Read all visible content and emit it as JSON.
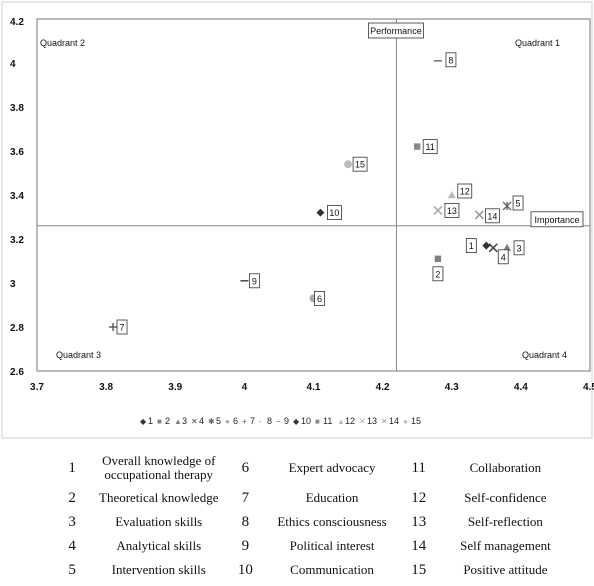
{
  "chart_data": {
    "type": "scatter",
    "xlim": [
      3.7,
      4.5
    ],
    "ylim": [
      2.6,
      4.2
    ],
    "x_ticks": [
      "3.7",
      "3.8",
      "3.9",
      "4",
      "4.1",
      "4.2",
      "4.3",
      "4.4",
      "4.5"
    ],
    "y_ticks": [
      "2.6",
      "2.8",
      "3",
      "3.2",
      "3.4",
      "3.6",
      "3.8",
      "4",
      "4.2"
    ],
    "x_divider": 4.22,
    "y_divider": 3.26,
    "axis_callouts": {
      "y_axis": "Performance",
      "x_axis": "Importance"
    },
    "quadrants": [
      "Quadrant 1",
      "Quadrant 2",
      "Quadrant 3",
      "Quadrant 4"
    ],
    "grid": false,
    "legend_position": "bottom",
    "series": [
      {
        "name": "1",
        "x": 4.35,
        "y": 3.17,
        "marker": "diamond",
        "color": "#333333"
      },
      {
        "name": "2",
        "x": 4.28,
        "y": 3.11,
        "marker": "square",
        "color": "#7f7f7f"
      },
      {
        "name": "3",
        "x": 4.38,
        "y": 3.16,
        "marker": "triangle",
        "color": "#7f7f7f"
      },
      {
        "name": "4",
        "x": 4.36,
        "y": 3.16,
        "marker": "x",
        "color": "#444444"
      },
      {
        "name": "5",
        "x": 4.38,
        "y": 3.35,
        "marker": "star",
        "color": "#666666"
      },
      {
        "name": "6",
        "x": 4.1,
        "y": 2.93,
        "marker": "circle",
        "color": "#aaaaaa"
      },
      {
        "name": "7",
        "x": 3.81,
        "y": 2.8,
        "marker": "plus",
        "color": "#555555"
      },
      {
        "name": "8",
        "x": 4.28,
        "y": 4.01,
        "marker": "dash",
        "color": "#777777"
      },
      {
        "name": "9",
        "x": 4.0,
        "y": 3.01,
        "marker": "dash",
        "color": "#555555"
      },
      {
        "name": "10",
        "x": 4.11,
        "y": 3.32,
        "marker": "diamond",
        "color": "#333333"
      },
      {
        "name": "11",
        "x": 4.25,
        "y": 3.62,
        "marker": "square",
        "color": "#888888"
      },
      {
        "name": "12",
        "x": 4.3,
        "y": 3.4,
        "marker": "triangle",
        "color": "#bbbbbb"
      },
      {
        "name": "13",
        "x": 4.28,
        "y": 3.33,
        "marker": "x",
        "color": "#aaaaaa"
      },
      {
        "name": "14",
        "x": 4.34,
        "y": 3.31,
        "marker": "x",
        "color": "#999999"
      },
      {
        "name": "15",
        "x": 4.15,
        "y": 3.54,
        "marker": "circle",
        "color": "#bbbbbb"
      }
    ],
    "legend": [
      {
        "symbol": "◆",
        "label": "1"
      },
      {
        "symbol": "■",
        "label": "2"
      },
      {
        "symbol": "▲",
        "label": "3"
      },
      {
        "symbol": "✕",
        "label": "4"
      },
      {
        "symbol": "✱",
        "label": "5"
      },
      {
        "symbol": "●",
        "label": "6"
      },
      {
        "symbol": "+",
        "label": "7"
      },
      {
        "symbol": "-",
        "label": "8"
      },
      {
        "symbol": "−",
        "label": "9"
      },
      {
        "symbol": "◆",
        "label": "10"
      },
      {
        "symbol": "■",
        "label": "11"
      },
      {
        "symbol": "▲",
        "label": "12"
      },
      {
        "symbol": "✕",
        "label": "13"
      },
      {
        "symbol": "✕",
        "label": "14"
      },
      {
        "symbol": "●",
        "label": "15"
      }
    ]
  },
  "key_table": [
    [
      {
        "num": "1",
        "name": "Overall knowledge of occupational therapy"
      },
      {
        "num": "6",
        "name": "Expert advocacy"
      },
      {
        "num": "11",
        "name": "Collaboration"
      }
    ],
    [
      {
        "num": "2",
        "name": "Theoretical knowledge"
      },
      {
        "num": "7",
        "name": "Education"
      },
      {
        "num": "12",
        "name": "Self-confidence"
      }
    ],
    [
      {
        "num": "3",
        "name": "Evaluation skills"
      },
      {
        "num": "8",
        "name": "Ethics consciousness"
      },
      {
        "num": "13",
        "name": "Self-reflection"
      }
    ],
    [
      {
        "num": "4",
        "name": "Analytical skills"
      },
      {
        "num": "9",
        "name": "Political interest"
      },
      {
        "num": "14",
        "name": "Self management"
      }
    ],
    [
      {
        "num": "5",
        "name": "Intervention skills"
      },
      {
        "num": "10",
        "name": "Communication"
      },
      {
        "num": "15",
        "name": "Positive attitude"
      }
    ]
  ]
}
